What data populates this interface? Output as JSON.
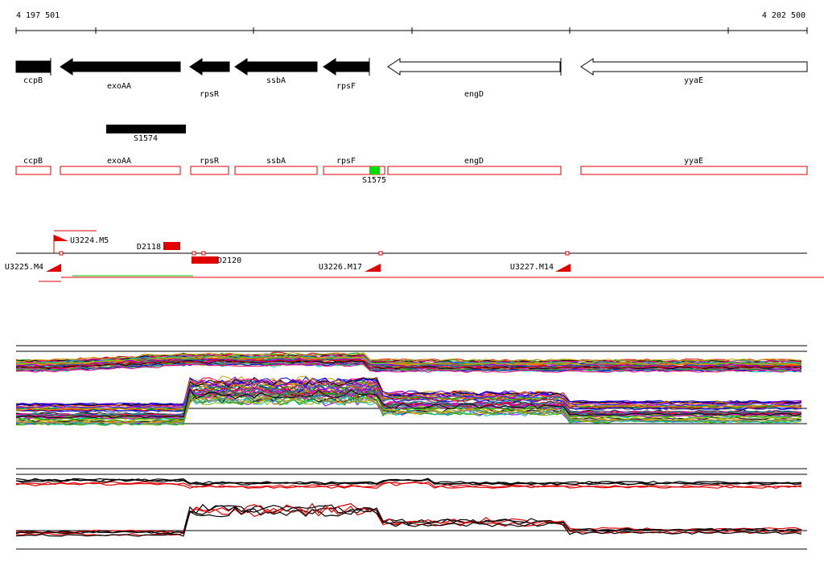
{
  "ruler": {
    "start": "4 197 501",
    "end": "4 202 500"
  },
  "genes": [
    {
      "label": "ccpB"
    },
    {
      "label": "exoAA"
    },
    {
      "label": "rpsR"
    },
    {
      "label": "ssbA"
    },
    {
      "label": "rpsF"
    },
    {
      "label": "engD"
    },
    {
      "label": "yyaE"
    }
  ],
  "features": {
    "s1574": "S1574",
    "s1575": "S1575"
  },
  "sites": {
    "u3224": "U3224.M5",
    "d2118": "D2118",
    "d2120": "D2120",
    "u3225": "U3225.M4",
    "u3226": "U3226.M17",
    "u3227": "U3227.M14"
  }
}
